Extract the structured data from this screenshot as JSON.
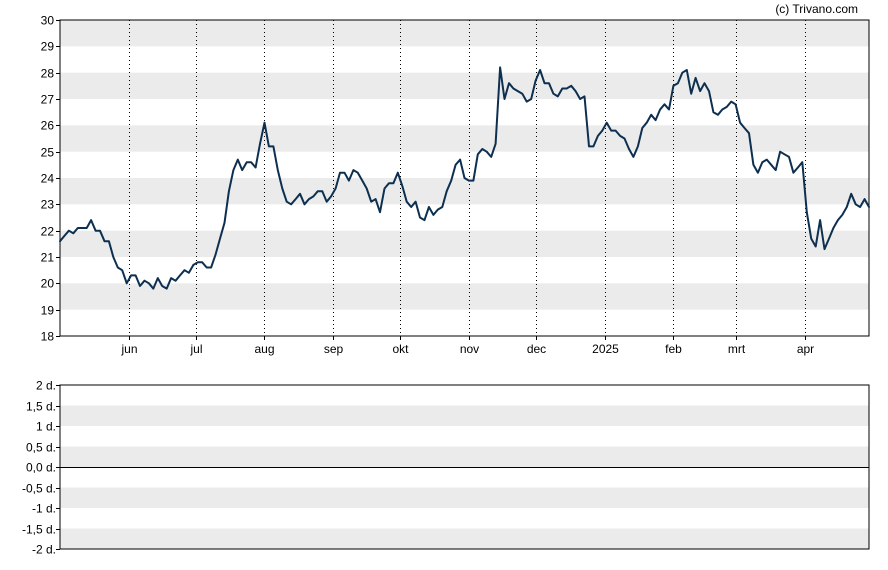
{
  "copyright": "(c) Trivano.com",
  "chart_data": [
    {
      "type": "line",
      "title": "",
      "xlabel": "",
      "ylabel": "",
      "ylim": [
        18,
        30
      ],
      "y_ticks": [
        "30",
        "29",
        "28",
        "27",
        "26",
        "25",
        "24",
        "23",
        "22",
        "21",
        "20",
        "19",
        "18"
      ],
      "x_tick_labels": [
        "jun",
        "jul",
        "aug",
        "sep",
        "okt",
        "nov",
        "dec",
        "2025",
        "feb",
        "mrt",
        "apr"
      ],
      "x_tick_dates": [
        "2024-06-01",
        "2024-07-01",
        "2024-08-01",
        "2024-09-01",
        "2024-10-01",
        "2024-11-01",
        "2024-12-01",
        "2025-01-01",
        "2025-02-01",
        "2025-03-01",
        "2025-04-01"
      ],
      "x_range": [
        "2024-05-01",
        "2025-04-30"
      ],
      "grid": "alternating horizontal bands, dotted vertical lines at month ticks",
      "series": [
        {
          "color": "#0d3050",
          "points": [
            [
              "2024-05-01",
              21.6
            ],
            [
              "2024-05-03",
              21.8
            ],
            [
              "2024-05-05",
              22.0
            ],
            [
              "2024-05-07",
              21.9
            ],
            [
              "2024-05-09",
              22.1
            ],
            [
              "2024-05-11",
              22.1
            ],
            [
              "2024-05-13",
              22.1
            ],
            [
              "2024-05-15",
              22.4
            ],
            [
              "2024-05-17",
              22.0
            ],
            [
              "2024-05-19",
              22.0
            ],
            [
              "2024-05-21",
              21.6
            ],
            [
              "2024-05-23",
              21.6
            ],
            [
              "2024-05-25",
              21.0
            ],
            [
              "2024-05-27",
              20.6
            ],
            [
              "2024-05-29",
              20.5
            ],
            [
              "2024-05-31",
              20.0
            ],
            [
              "2024-06-02",
              20.3
            ],
            [
              "2024-06-04",
              20.3
            ],
            [
              "2024-06-06",
              19.9
            ],
            [
              "2024-06-08",
              20.1
            ],
            [
              "2024-06-10",
              20.0
            ],
            [
              "2024-06-12",
              19.8
            ],
            [
              "2024-06-14",
              20.2
            ],
            [
              "2024-06-16",
              19.9
            ],
            [
              "2024-06-18",
              19.8
            ],
            [
              "2024-06-20",
              20.2
            ],
            [
              "2024-06-22",
              20.1
            ],
            [
              "2024-06-24",
              20.3
            ],
            [
              "2024-06-26",
              20.5
            ],
            [
              "2024-06-28",
              20.4
            ],
            [
              "2024-06-30",
              20.7
            ],
            [
              "2024-07-02",
              20.8
            ],
            [
              "2024-07-04",
              20.8
            ],
            [
              "2024-07-06",
              20.6
            ],
            [
              "2024-07-08",
              20.6
            ],
            [
              "2024-07-10",
              21.1
            ],
            [
              "2024-07-12",
              21.7
            ],
            [
              "2024-07-14",
              22.3
            ],
            [
              "2024-07-16",
              23.5
            ],
            [
              "2024-07-18",
              24.3
            ],
            [
              "2024-07-20",
              24.7
            ],
            [
              "2024-07-22",
              24.3
            ],
            [
              "2024-07-24",
              24.6
            ],
            [
              "2024-07-26",
              24.6
            ],
            [
              "2024-07-28",
              24.4
            ],
            [
              "2024-07-30",
              25.3
            ],
            [
              "2024-08-01",
              26.1
            ],
            [
              "2024-08-03",
              25.2
            ],
            [
              "2024-08-05",
              25.2
            ],
            [
              "2024-08-07",
              24.3
            ],
            [
              "2024-08-09",
              23.6
            ],
            [
              "2024-08-11",
              23.1
            ],
            [
              "2024-08-13",
              23.0
            ],
            [
              "2024-08-15",
              23.2
            ],
            [
              "2024-08-17",
              23.4
            ],
            [
              "2024-08-19",
              23.0
            ],
            [
              "2024-08-21",
              23.2
            ],
            [
              "2024-08-23",
              23.3
            ],
            [
              "2024-08-25",
              23.5
            ],
            [
              "2024-08-27",
              23.5
            ],
            [
              "2024-08-29",
              23.1
            ],
            [
              "2024-08-31",
              23.3
            ],
            [
              "2024-09-02",
              23.6
            ],
            [
              "2024-09-04",
              24.2
            ],
            [
              "2024-09-06",
              24.2
            ],
            [
              "2024-09-08",
              23.9
            ],
            [
              "2024-09-10",
              24.3
            ],
            [
              "2024-09-12",
              24.2
            ],
            [
              "2024-09-14",
              23.9
            ],
            [
              "2024-09-16",
              23.6
            ],
            [
              "2024-09-18",
              23.1
            ],
            [
              "2024-09-20",
              23.2
            ],
            [
              "2024-09-22",
              22.7
            ],
            [
              "2024-09-24",
              23.6
            ],
            [
              "2024-09-26",
              23.8
            ],
            [
              "2024-09-28",
              23.8
            ],
            [
              "2024-09-30",
              24.2
            ],
            [
              "2024-10-02",
              23.7
            ],
            [
              "2024-10-04",
              23.1
            ],
            [
              "2024-10-06",
              22.9
            ],
            [
              "2024-10-08",
              23.1
            ],
            [
              "2024-10-10",
              22.5
            ],
            [
              "2024-10-12",
              22.4
            ],
            [
              "2024-10-14",
              22.9
            ],
            [
              "2024-10-16",
              22.6
            ],
            [
              "2024-10-18",
              22.8
            ],
            [
              "2024-10-20",
              22.9
            ],
            [
              "2024-10-22",
              23.5
            ],
            [
              "2024-10-24",
              23.9
            ],
            [
              "2024-10-26",
              24.5
            ],
            [
              "2024-10-28",
              24.7
            ],
            [
              "2024-10-30",
              24.0
            ],
            [
              "2024-11-01",
              23.9
            ],
            [
              "2024-11-03",
              23.9
            ],
            [
              "2024-11-05",
              24.9
            ],
            [
              "2024-11-07",
              25.1
            ],
            [
              "2024-11-09",
              25.0
            ],
            [
              "2024-11-11",
              24.8
            ],
            [
              "2024-11-13",
              25.3
            ],
            [
              "2024-11-15",
              28.2
            ],
            [
              "2024-11-17",
              27.0
            ],
            [
              "2024-11-19",
              27.6
            ],
            [
              "2024-11-21",
              27.4
            ],
            [
              "2024-11-23",
              27.3
            ],
            [
              "2024-11-25",
              27.2
            ],
            [
              "2024-11-27",
              26.9
            ],
            [
              "2024-11-29",
              27.0
            ],
            [
              "2024-12-01",
              27.7
            ],
            [
              "2024-12-03",
              28.1
            ],
            [
              "2024-12-05",
              27.6
            ],
            [
              "2024-12-07",
              27.6
            ],
            [
              "2024-12-09",
              27.2
            ],
            [
              "2024-12-11",
              27.1
            ],
            [
              "2024-12-13",
              27.4
            ],
            [
              "2024-12-15",
              27.4
            ],
            [
              "2024-12-17",
              27.5
            ],
            [
              "2024-12-19",
              27.3
            ],
            [
              "2024-12-21",
              27.0
            ],
            [
              "2024-12-23",
              27.1
            ],
            [
              "2024-12-25",
              25.2
            ],
            [
              "2024-12-27",
              25.2
            ],
            [
              "2024-12-29",
              25.6
            ],
            [
              "2024-12-31",
              25.8
            ],
            [
              "2025-01-02",
              26.1
            ],
            [
              "2025-01-04",
              25.8
            ],
            [
              "2025-01-06",
              25.8
            ],
            [
              "2025-01-08",
              25.6
            ],
            [
              "2025-01-10",
              25.5
            ],
            [
              "2025-01-12",
              25.1
            ],
            [
              "2025-01-14",
              24.8
            ],
            [
              "2025-01-16",
              25.2
            ],
            [
              "2025-01-18",
              25.9
            ],
            [
              "2025-01-20",
              26.1
            ],
            [
              "2025-01-22",
              26.4
            ],
            [
              "2025-01-24",
              26.2
            ],
            [
              "2025-01-26",
              26.6
            ],
            [
              "2025-01-28",
              26.8
            ],
            [
              "2025-01-30",
              26.6
            ],
            [
              "2025-02-01",
              27.5
            ],
            [
              "2025-02-03",
              27.6
            ],
            [
              "2025-02-05",
              28.0
            ],
            [
              "2025-02-07",
              28.1
            ],
            [
              "2025-02-09",
              27.2
            ],
            [
              "2025-02-11",
              27.8
            ],
            [
              "2025-02-13",
              27.3
            ],
            [
              "2025-02-15",
              27.6
            ],
            [
              "2025-02-17",
              27.3
            ],
            [
              "2025-02-19",
              26.5
            ],
            [
              "2025-02-21",
              26.4
            ],
            [
              "2025-02-23",
              26.6
            ],
            [
              "2025-02-25",
              26.7
            ],
            [
              "2025-02-27",
              26.9
            ],
            [
              "2025-03-01",
              26.8
            ],
            [
              "2025-03-03",
              26.1
            ],
            [
              "2025-03-05",
              25.9
            ],
            [
              "2025-03-07",
              25.7
            ],
            [
              "2025-03-09",
              24.5
            ],
            [
              "2025-03-11",
              24.2
            ],
            [
              "2025-03-13",
              24.6
            ],
            [
              "2025-03-15",
              24.7
            ],
            [
              "2025-03-17",
              24.5
            ],
            [
              "2025-03-19",
              24.3
            ],
            [
              "2025-03-21",
              25.0
            ],
            [
              "2025-03-23",
              24.9
            ],
            [
              "2025-03-25",
              24.8
            ],
            [
              "2025-03-27",
              24.2
            ],
            [
              "2025-03-29",
              24.4
            ],
            [
              "2025-03-31",
              24.6
            ],
            [
              "2025-04-02",
              22.7
            ],
            [
              "2025-04-04",
              21.7
            ],
            [
              "2025-04-06",
              21.4
            ],
            [
              "2025-04-08",
              22.4
            ],
            [
              "2025-04-10",
              21.3
            ],
            [
              "2025-04-12",
              21.7
            ],
            [
              "2025-04-14",
              22.1
            ],
            [
              "2025-04-16",
              22.4
            ],
            [
              "2025-04-18",
              22.6
            ],
            [
              "2025-04-20",
              22.9
            ],
            [
              "2025-04-22",
              23.4
            ],
            [
              "2025-04-24",
              23.0
            ],
            [
              "2025-04-26",
              22.9
            ],
            [
              "2025-04-28",
              23.2
            ],
            [
              "2025-04-30",
              22.9
            ]
          ]
        }
      ]
    },
    {
      "type": "bar",
      "title": "",
      "ylim": [
        -2,
        2
      ],
      "y_ticks": [
        "2 d.",
        "1,5 d.",
        "1 d.",
        "0,5 d.",
        "0,0 d.",
        "-0,5 d.",
        "-1 d.",
        "-1,5 d.",
        "-2 d."
      ],
      "grid": "alternating horizontal bands",
      "values": []
    }
  ]
}
